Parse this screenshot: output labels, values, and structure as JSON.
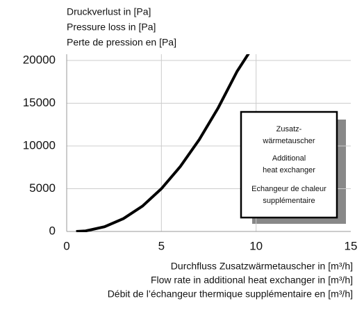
{
  "chart_data": {
    "type": "line",
    "y_title": [
      "Druckverlust in [Pa]",
      "Pressure loss in [Pa]",
      "Perte de pression en [Pa]"
    ],
    "x_title": [
      "Durchfluss Zusatzwärmetauscher in [m³/h]",
      "Flow rate in additional heat exchanger in [m³/h]",
      "Débit de l’échangeur thermique supplémentaire en [m³/h]"
    ],
    "x": [
      0.5,
      1,
      2,
      3,
      4,
      5,
      6,
      7,
      8,
      9,
      9.9
    ],
    "series": [
      {
        "name": "Zusatzwärmetauscher",
        "color": "#000000",
        "values": [
          0,
          62,
          556,
          1509,
          2964,
          5000,
          7595,
          10750,
          14464,
          18740,
          21820
        ]
      }
    ],
    "legend_lines": [
      "Zusatz-",
      "wärmetauscher",
      "Additional",
      "heat exchanger",
      "Echangeur de chaleur",
      "supplémentaire"
    ],
    "xlim": [
      0,
      15
    ],
    "xticks": [
      0,
      5,
      10,
      15
    ],
    "ylim": [
      0,
      20000
    ],
    "yticks": [
      0,
      5000,
      10000,
      15000,
      20000
    ],
    "grid": true
  }
}
